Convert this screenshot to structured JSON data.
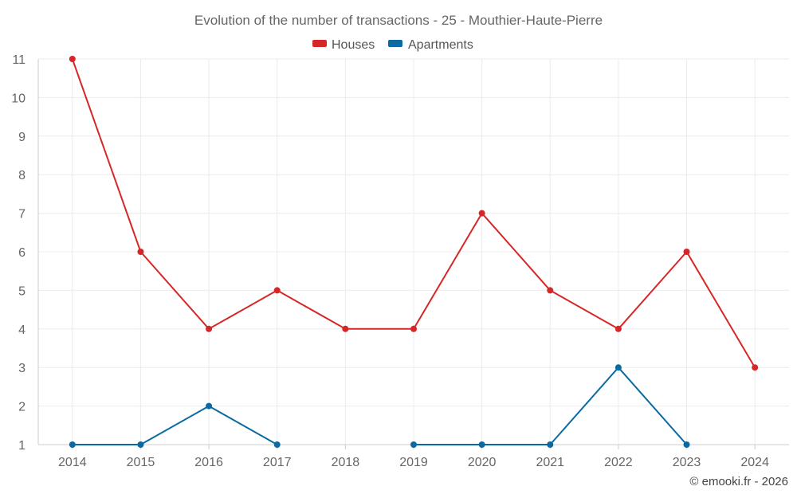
{
  "chart_data": {
    "type": "line",
    "title": "Evolution of the number of transactions - 25 - Mouthier-Haute-Pierre",
    "x": [
      "2014",
      "2015",
      "2016",
      "2017",
      "2018",
      "2019",
      "2020",
      "2021",
      "2022",
      "2023",
      "2024"
    ],
    "yticks": [
      "1",
      "2",
      "3",
      "4",
      "5",
      "6",
      "7",
      "8",
      "9",
      "10",
      "11"
    ],
    "ylim": [
      1,
      11
    ],
    "grid": true,
    "legend_position": "top-center",
    "series": [
      {
        "name": "Houses",
        "color": "#d62728",
        "values": [
          11,
          6,
          4,
          5,
          4,
          4,
          7,
          5,
          4,
          6,
          3
        ]
      },
      {
        "name": "Apartments",
        "color": "#0a6aa1",
        "values": [
          1,
          1,
          2,
          1,
          null,
          1,
          1,
          1,
          3,
          1,
          null
        ]
      }
    ]
  },
  "credit": "© emooki.fr - 2026"
}
